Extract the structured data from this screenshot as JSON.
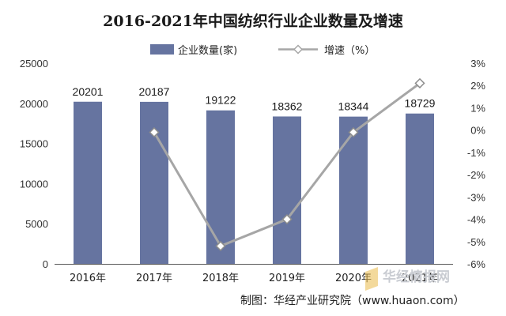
{
  "chart_data": {
    "type": "bar",
    "title": "2016-2021年中国纺织行业企业数量及增速",
    "categories": [
      "2016年",
      "2017年",
      "2018年",
      "2019年",
      "2020年",
      "2021年"
    ],
    "series": [
      {
        "name": "企业数量(家)",
        "type": "bar",
        "axis": "left",
        "color": "#6674a0",
        "values": [
          20201,
          20187,
          19122,
          18362,
          18344,
          18729
        ],
        "labels": [
          "20201",
          "20187",
          "19122",
          "18362",
          "18344",
          "18729"
        ]
      },
      {
        "name": "增速（%）",
        "type": "line",
        "axis": "right",
        "color": "#a6a6a6",
        "values": [
          null,
          -0.1,
          -5.2,
          -4.0,
          -0.1,
          2.1
        ]
      }
    ],
    "y_left": {
      "min": 0,
      "max": 25000,
      "step": 5000,
      "ticks": [
        "0",
        "5000",
        "10000",
        "15000",
        "20000",
        "25000"
      ]
    },
    "y_right": {
      "min": -6,
      "max": 3,
      "step": 1,
      "ticks": [
        "-6%",
        "-5%",
        "-4%",
        "-3%",
        "-2%",
        "-1%",
        "0%",
        "1%",
        "2%",
        "3%"
      ]
    },
    "grid": false,
    "legend_position": "top"
  },
  "source": "制图：华经产业研究院（www.huaon.com）",
  "watermark": "华经情报网"
}
